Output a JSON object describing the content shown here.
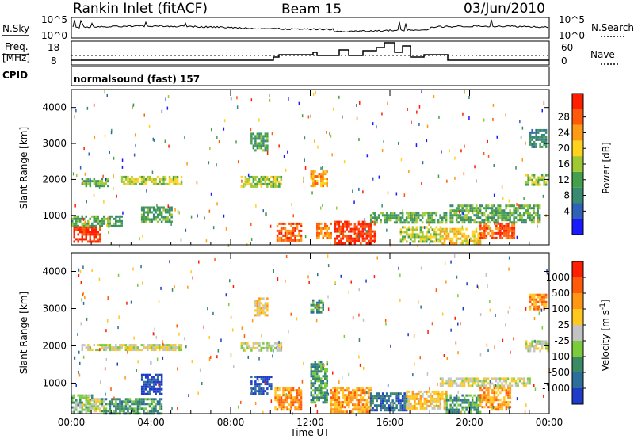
{
  "header": {
    "station": "Rankin Inlet (fitACF)",
    "beam": "Beam 15",
    "date": "03/Jun/2010"
  },
  "noise_panel": {
    "left_label": "N.Sky",
    "right_label": "N.Search",
    "left_ticks": [
      "10^5",
      "10^0"
    ],
    "right_ticks": [
      "10^5",
      "10^0"
    ]
  },
  "freq_panel": {
    "left_label_top": "Freq.",
    "left_label_bottom": "[MHz]",
    "right_label": "Nave",
    "left_ticks": [
      "18",
      "8"
    ],
    "right_ticks": [
      "60",
      "0"
    ]
  },
  "cpid_panel": {
    "label": "CPID",
    "mode": "normalsound (fast) 157"
  },
  "chart_data": [
    {
      "type": "heatmap",
      "title": "",
      "xlabel": "",
      "ylabel": "Slant Range [km]",
      "x_ticks": [
        "00:00",
        "04:00",
        "08:00",
        "12:00",
        "16:00",
        "20:00",
        "00:00"
      ],
      "xlim_hours": [
        0,
        24
      ],
      "y_ticks": [
        "1000",
        "2000",
        "3000",
        "4000"
      ],
      "ylim": [
        180,
        4500
      ],
      "colorbar": {
        "label": "Power [dB]",
        "ticks": [
          "4",
          "8",
          "12",
          "16",
          "20",
          "24",
          "28"
        ],
        "colors": [
          "#1a1aff",
          "#2f61b8",
          "#3a8a72",
          "#44a04c",
          "#a0c832",
          "#ffd21e",
          "#ff9a14",
          "#ff5a0a",
          "#ff1e00"
        ]
      },
      "features": [
        {
          "t0": 0.1,
          "t1": 1.4,
          "r0": 250,
          "r1": 700,
          "level": 8
        },
        {
          "t0": 0.0,
          "t1": 2.5,
          "r0": 700,
          "r1": 1000,
          "level": 3
        },
        {
          "t0": 0.5,
          "t1": 1.8,
          "r0": 1850,
          "r1": 2050,
          "level": 3
        },
        {
          "t0": 2.5,
          "t1": 5.5,
          "r0": 1850,
          "r1": 2100,
          "level": 4
        },
        {
          "t0": 3.5,
          "t1": 5.0,
          "r0": 800,
          "r1": 1250,
          "level": 3
        },
        {
          "t0": 8.5,
          "t1": 10.5,
          "r0": 1800,
          "r1": 2100,
          "level": 4
        },
        {
          "t0": 10.3,
          "t1": 11.5,
          "r0": 300,
          "r1": 800,
          "level": 7
        },
        {
          "t0": 12.0,
          "t1": 12.8,
          "r0": 1800,
          "r1": 2250,
          "level": 6
        },
        {
          "t0": 12.3,
          "t1": 13.0,
          "r0": 350,
          "r1": 800,
          "level": 6
        },
        {
          "t0": 13.2,
          "t1": 15.2,
          "r0": 250,
          "r1": 850,
          "level": 8
        },
        {
          "t0": 15.0,
          "t1": 18.8,
          "r0": 800,
          "r1": 1100,
          "level": 3
        },
        {
          "t0": 16.5,
          "t1": 18.5,
          "r0": 300,
          "r1": 700,
          "level": 4
        },
        {
          "t0": 18.5,
          "t1": 20.5,
          "r0": 250,
          "r1": 650,
          "level": 5
        },
        {
          "t0": 20.5,
          "t1": 22.2,
          "r0": 350,
          "r1": 800,
          "level": 7
        },
        {
          "t0": 19.0,
          "t1": 23.5,
          "r0": 800,
          "r1": 1300,
          "level": 3
        },
        {
          "t0": 22.8,
          "t1": 23.9,
          "r0": 1850,
          "r1": 2150,
          "level": 4
        },
        {
          "t0": 23.0,
          "t1": 23.8,
          "r0": 2900,
          "r1": 3400,
          "level": 2
        },
        {
          "t0": 9.0,
          "t1": 9.8,
          "r0": 2800,
          "r1": 3300,
          "level": 3
        }
      ]
    },
    {
      "type": "heatmap",
      "title": "",
      "xlabel": "Time UT",
      "ylabel": "Slant Range [km]",
      "x_ticks": [
        "00:00",
        "04:00",
        "08:00",
        "12:00",
        "16:00",
        "20:00",
        "00:00"
      ],
      "xlim_hours": [
        0,
        24
      ],
      "y_ticks": [
        "1000",
        "2000",
        "3000",
        "4000"
      ],
      "ylim": [
        180,
        4500
      ],
      "colorbar": {
        "label": "Velocity [m s^-1]",
        "ticks": [
          "1000",
          "500",
          "100",
          "25",
          "-25",
          "-100",
          "-500",
          "-1000"
        ],
        "colors": [
          "#1e3cc8",
          "#2d6e9a",
          "#3a8a64",
          "#7acc3c",
          "#c3c3c3",
          "#ffc81e",
          "#ff9614",
          "#ff5a0a",
          "#ff1e00"
        ]
      },
      "features": [
        {
          "t0": 0.0,
          "t1": 1.0,
          "r0": 200,
          "r1": 700,
          "level": 3
        },
        {
          "t0": 0.8,
          "t1": 1.6,
          "r0": 250,
          "r1": 600,
          "level": 4
        },
        {
          "t0": 1.5,
          "t1": 4.5,
          "r0": 200,
          "r1": 600,
          "level": 2
        },
        {
          "t0": 0.5,
          "t1": 5.5,
          "r0": 1900,
          "r1": 2050,
          "level": 4
        },
        {
          "t0": 3.5,
          "t1": 4.5,
          "r0": 700,
          "r1": 1250,
          "level": 0
        },
        {
          "t0": 8.5,
          "t1": 10.5,
          "r0": 1850,
          "r1": 2100,
          "level": 4
        },
        {
          "t0": 9.0,
          "t1": 10.0,
          "r0": 700,
          "r1": 1200,
          "level": 0
        },
        {
          "t0": 10.2,
          "t1": 11.5,
          "r0": 300,
          "r1": 900,
          "level": 6
        },
        {
          "t0": 12.0,
          "t1": 12.8,
          "r0": 500,
          "r1": 1600,
          "level": 2
        },
        {
          "t0": 13.0,
          "t1": 15.0,
          "r0": 250,
          "r1": 900,
          "level": 6
        },
        {
          "t0": 15.0,
          "t1": 16.8,
          "r0": 250,
          "r1": 750,
          "level": 1
        },
        {
          "t0": 16.8,
          "t1": 18.8,
          "r0": 300,
          "r1": 800,
          "level": 5
        },
        {
          "t0": 18.8,
          "t1": 20.5,
          "r0": 250,
          "r1": 700,
          "level": 2
        },
        {
          "t0": 20.5,
          "t1": 22.0,
          "r0": 300,
          "r1": 900,
          "level": 6
        },
        {
          "t0": 18.5,
          "t1": 23.0,
          "r0": 900,
          "r1": 1150,
          "level": 4
        },
        {
          "t0": 22.8,
          "t1": 23.9,
          "r0": 1850,
          "r1": 2150,
          "level": 4
        },
        {
          "t0": 23.0,
          "t1": 23.8,
          "r0": 3000,
          "r1": 3400,
          "level": 6
        },
        {
          "t0": 9.2,
          "t1": 9.8,
          "r0": 2800,
          "r1": 3300,
          "level": 5
        },
        {
          "t0": 12.0,
          "t1": 12.6,
          "r0": 2900,
          "r1": 3250,
          "level": 2
        }
      ]
    }
  ]
}
